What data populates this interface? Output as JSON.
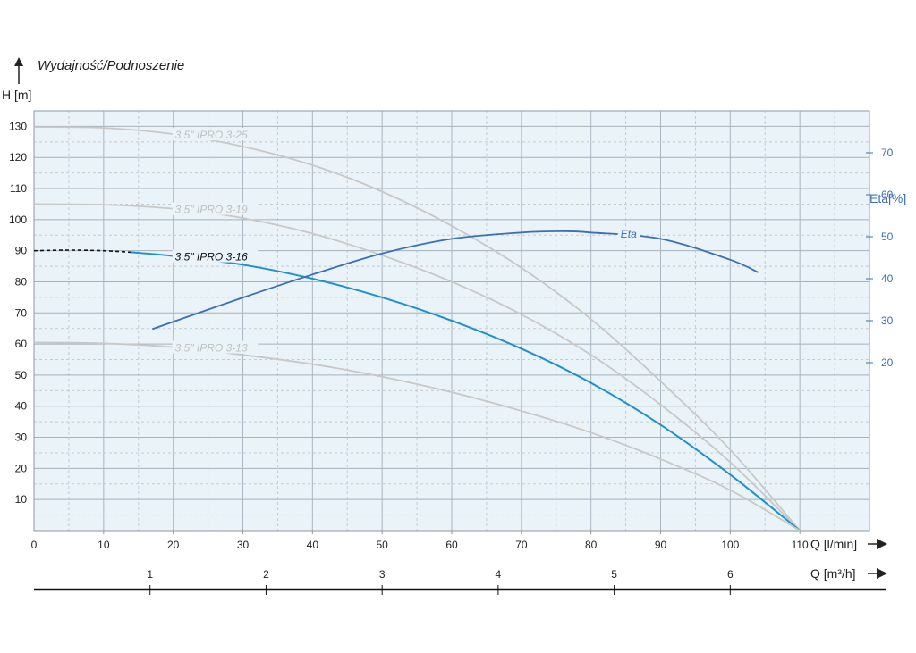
{
  "chart_data": {
    "type": "line",
    "title": "Wydajność/Podnoszenie",
    "ylabel": "H [m]",
    "xlabel": "Q  [l/min]",
    "x2label": "Q  [m³/h]",
    "y2label": "Eta[%]",
    "xlim": [
      0,
      120
    ],
    "ylim": [
      0,
      135
    ],
    "y2lim": [
      -20,
      80
    ],
    "x_ticks": [
      "0",
      "10",
      "20",
      "30",
      "40",
      "50",
      "60",
      "70",
      "80",
      "90",
      "100",
      "110"
    ],
    "y_ticks": [
      "10",
      "20",
      "30",
      "40",
      "50",
      "60",
      "70",
      "80",
      "90",
      "100",
      "110",
      "120",
      "130"
    ],
    "y2_ticks": [
      "20",
      "30",
      "40",
      "50",
      "60",
      "70"
    ],
    "x2_ticks": [
      "1",
      "2",
      "3",
      "4",
      "5",
      "6"
    ],
    "grid": true,
    "series": [
      {
        "name": "3,5\" IPRO 3-25",
        "color": "#c8c8c8",
        "label_text": "3,5\" IPRO 3-25",
        "x": [
          0,
          10,
          20,
          30,
          40,
          50,
          60,
          70,
          80,
          90,
          100,
          110
        ],
        "y": [
          129.8,
          129.5,
          127.5,
          123.5,
          117.5,
          109,
          98,
          84.5,
          68,
          48,
          26,
          0
        ]
      },
      {
        "name": "3,5\" IPRO 3-19",
        "color": "#c8c8c8",
        "label_text": "3,5\" IPRO 3-19",
        "x": [
          0,
          10,
          20,
          30,
          40,
          50,
          60,
          70,
          80,
          90,
          100,
          110
        ],
        "y": [
          105,
          104.8,
          103.5,
          100.5,
          95.5,
          88.5,
          80,
          69.5,
          56.5,
          40.5,
          22,
          0
        ]
      },
      {
        "name": "3,5\" IPRO 3-16",
        "color": "#1a92d0",
        "label_text": "3,5\" IPRO 3-16",
        "dashed_until": 14,
        "x": [
          0,
          5,
          10,
          14,
          20,
          30,
          40,
          50,
          60,
          70,
          80,
          90,
          100,
          110
        ],
        "y": [
          90,
          90.2,
          90,
          89.5,
          88.3,
          85.5,
          81,
          75,
          67.5,
          58.5,
          47.5,
          34,
          18,
          0
        ]
      },
      {
        "name": "3,5\" IPRO 3-13",
        "color": "#c8c8c8",
        "label_text": "3,5\" IPRO 3-13",
        "x": [
          0,
          10,
          20,
          30,
          40,
          50,
          60,
          70,
          80,
          90,
          100,
          110
        ],
        "y": [
          60.5,
          60.2,
          59,
          56.5,
          53.5,
          49.5,
          44.5,
          38.5,
          31.5,
          23,
          13,
          0
        ]
      },
      {
        "name": "Eta",
        "color": "#3a6fb5",
        "label_text": "Eta",
        "axis": "right",
        "x": [
          17,
          30,
          40,
          50,
          60,
          70,
          76,
          80,
          90,
          100,
          104
        ],
        "y": [
          28,
          35.5,
          41,
          46,
          49.5,
          51,
          51.3,
          51,
          49.5,
          44.5,
          41.5
        ]
      }
    ]
  }
}
